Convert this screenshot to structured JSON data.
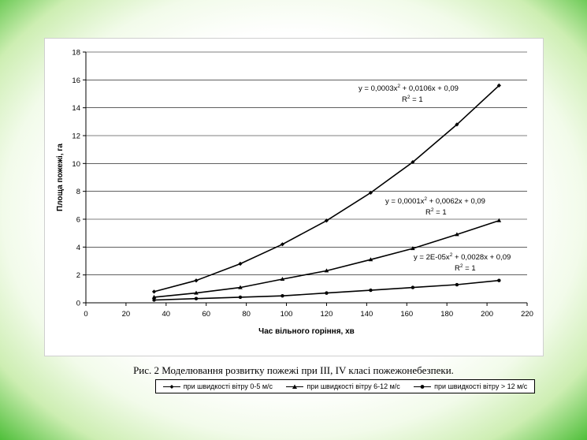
{
  "chart_data": {
    "type": "line",
    "xlabel": "Час вільного горіння, хв",
    "ylabel": "Площа пожежі, га",
    "xlim": [
      0,
      220
    ],
    "ylim": [
      0,
      18
    ],
    "x_ticks": [
      "0",
      "20",
      "40",
      "60",
      "80",
      "100",
      "120",
      "140",
      "160",
      "180",
      "200",
      "220"
    ],
    "y_ticks": [
      "0",
      "2",
      "4",
      "6",
      "8",
      "10",
      "12",
      "14",
      "16",
      "18"
    ],
    "grid": "horizontal",
    "legend_position": "bottom",
    "x": [
      34,
      55,
      77,
      98,
      120,
      142,
      163,
      185,
      206
    ],
    "series": [
      {
        "name": "при швидкості вітру 0-5 м/с",
        "marker": "diamond",
        "values": [
          0.8,
          1.6,
          2.8,
          4.2,
          5.9,
          7.9,
          10.1,
          12.8,
          15.6
        ],
        "equation": "y = 0,0003x",
        "equation_tail": " + 0,0106x + 0,09",
        "r2": " = 1"
      },
      {
        "name": "при швидкості вітру 6-12 м/с",
        "marker": "triangle",
        "values": [
          0.4,
          0.7,
          1.1,
          1.7,
          2.3,
          3.1,
          3.9,
          4.9,
          5.9
        ],
        "equation": "y = 0,0001x",
        "equation_tail": " + 0,0062x + 0,09",
        "r2": " = 1"
      },
      {
        "name": "при швидкості вітру > 12 м/с",
        "marker": "circle",
        "values": [
          0.2,
          0.3,
          0.4,
          0.5,
          0.7,
          0.9,
          1.1,
          1.3,
          1.6
        ],
        "equation": "y = 2E-05x",
        "equation_tail": " + 0,0028x + 0,09",
        "r2": " = 1"
      }
    ]
  },
  "caption": "Рис. 2 Моделювання розвитку пожежі при ІІІ, IV класі пожежонебезпеки."
}
